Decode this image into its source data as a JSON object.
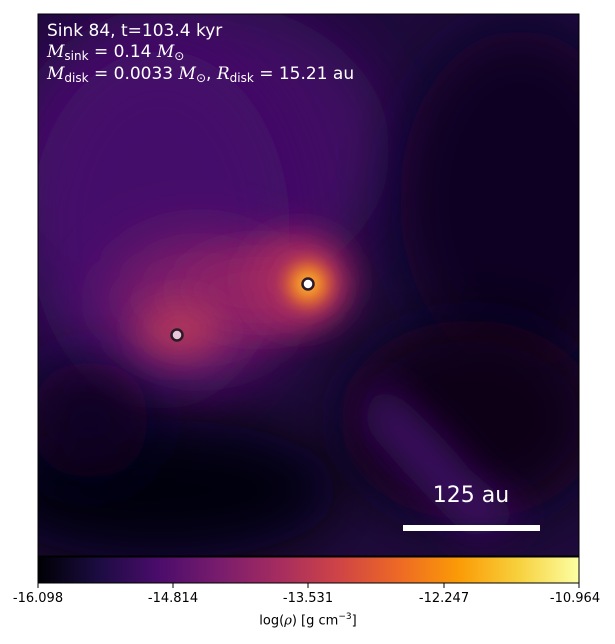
{
  "panel": {
    "line1": "Sink 84, t=103.4 kyr",
    "m_sink_label": "M",
    "m_sink_sub": "sink",
    "m_sink_value": " = 0.14 ",
    "m_disk_sub": "disk",
    "m_disk_value": " = 0.0033 ",
    "r_disk_label": "R",
    "r_disk_sub": "disk",
    "r_disk_value": " = 15.21 au",
    "msun_symbol": "M",
    "msun_sub": "⊙",
    "comma": ", "
  },
  "scale_bar": {
    "label": "125 au"
  },
  "colorbar": {
    "label_prefix": "log(",
    "label_rho": "ρ",
    "label_suffix": ") [g cm",
    "label_exp": "−3",
    "label_close": "]",
    "ticks": [
      "-16.098",
      "-14.814",
      "-13.531",
      "-12.247",
      "-10.964"
    ],
    "min": -16.098,
    "max": -10.964,
    "colormap": "inferno",
    "colors": [
      "#000004",
      "#1b0c41",
      "#4a0c6b",
      "#781c6d",
      "#a52c60",
      "#cf4446",
      "#ed6925",
      "#fb9b06",
      "#f7d13d",
      "#fcffa4"
    ]
  },
  "sinks": [
    {
      "name": "sink-84",
      "color": "#ffffff"
    },
    {
      "name": "sink-secondary",
      "color": "#ffffff"
    }
  ]
}
